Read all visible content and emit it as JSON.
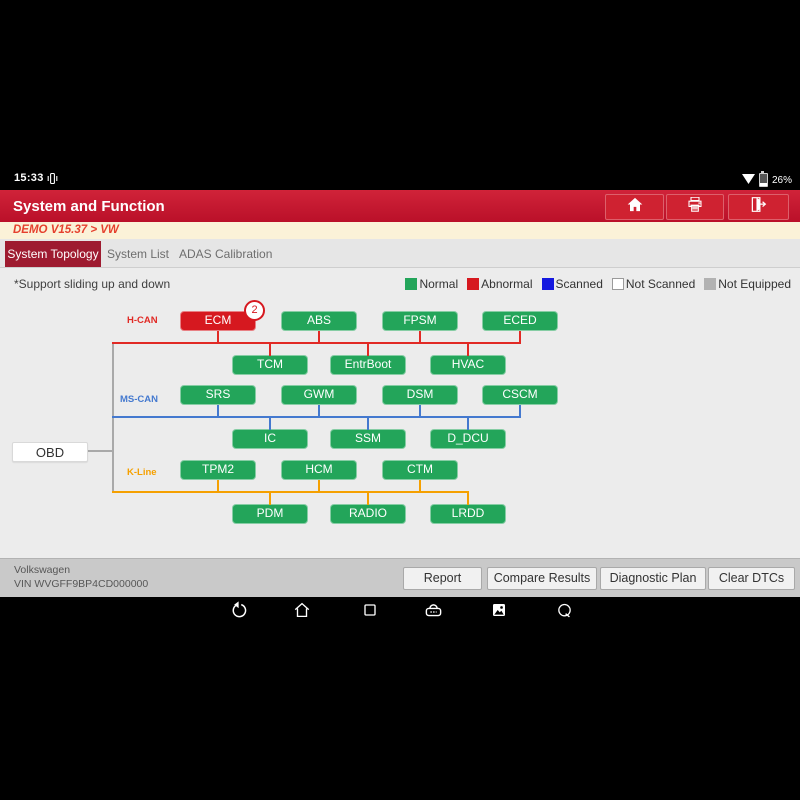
{
  "status_bar": {
    "time": "15:33",
    "battery": "26%"
  },
  "header": {
    "title": "System and Function"
  },
  "breadcrumb": {
    "path": "DEMO V15.37 > VW"
  },
  "tabs": [
    {
      "label": "System Topology",
      "selected": true
    },
    {
      "label": "System List",
      "selected": false
    },
    {
      "label": "ADAS Calibration",
      "selected": false
    }
  ],
  "hint": "*Support sliding up and down",
  "legend": [
    {
      "label": "Normal",
      "color": "#23a55a"
    },
    {
      "label": "Abnormal",
      "color": "#d6181f"
    },
    {
      "label": "Scanned",
      "color": "#1418df"
    },
    {
      "label": "Not Scanned",
      "color": "#ffffff"
    },
    {
      "label": "Not Equipped",
      "color": "#b2b2b2"
    }
  ],
  "topology": {
    "obd_label": "OBD",
    "buses": [
      {
        "label": "H-CAN",
        "color": "#e12a25"
      },
      {
        "label": "MS-CAN",
        "color": "#4479cf"
      },
      {
        "label": "K-Line",
        "color": "#f5a000"
      }
    ],
    "rows": [
      {
        "bus": "H-CAN",
        "nodes": [
          {
            "label": "ECM",
            "status": "abnormal",
            "badge": "2"
          },
          {
            "label": "ABS",
            "status": "normal"
          },
          {
            "label": "FPSM",
            "status": "normal"
          },
          {
            "label": "ECED",
            "status": "normal"
          }
        ]
      },
      {
        "bus": "H-CAN",
        "nodes": [
          {
            "label": "TCM",
            "status": "normal"
          },
          {
            "label": "EntrBoot",
            "status": "normal"
          },
          {
            "label": "HVAC",
            "status": "normal"
          }
        ]
      },
      {
        "bus": "MS-CAN",
        "nodes": [
          {
            "label": "SRS",
            "status": "normal"
          },
          {
            "label": "GWM",
            "status": "normal"
          },
          {
            "label": "DSM",
            "status": "normal"
          },
          {
            "label": "CSCM",
            "status": "normal"
          }
        ]
      },
      {
        "bus": "MS-CAN",
        "nodes": [
          {
            "label": "IC",
            "status": "normal"
          },
          {
            "label": "SSM",
            "status": "normal"
          },
          {
            "label": "D_DCU",
            "status": "normal"
          }
        ]
      },
      {
        "bus": "K-Line",
        "nodes": [
          {
            "label": "TPM2",
            "status": "normal"
          },
          {
            "label": "HCM",
            "status": "normal"
          },
          {
            "label": "CTM",
            "status": "normal"
          }
        ]
      },
      {
        "bus": "K-Line",
        "nodes": [
          {
            "label": "PDM",
            "status": "normal"
          },
          {
            "label": "RADIO",
            "status": "normal"
          },
          {
            "label": "LRDD",
            "status": "normal"
          }
        ]
      }
    ]
  },
  "footer": {
    "vehicle": "Volkswagen",
    "vin": "VIN WVGFF9BP4CD000000",
    "buttons": [
      "Report",
      "Compare Results",
      "Diagnostic Plan",
      "Clear DTCs"
    ]
  }
}
